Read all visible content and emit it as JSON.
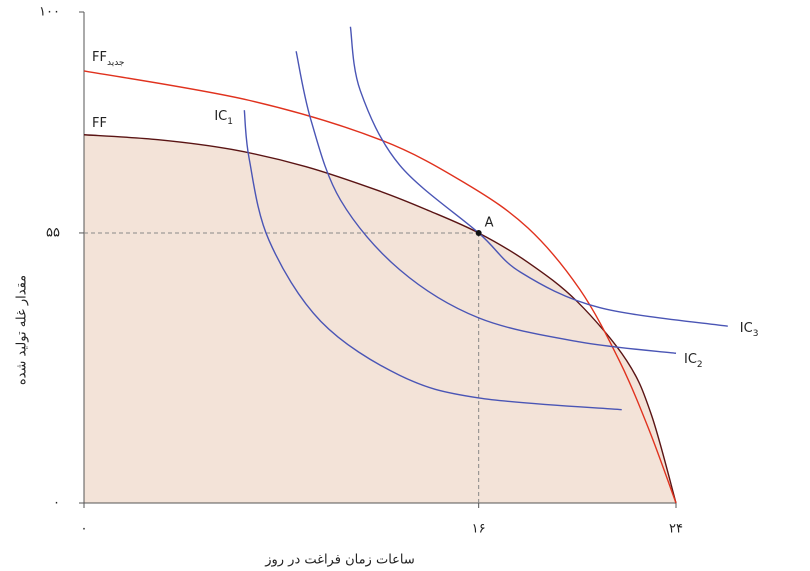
{
  "chart_data": {
    "type": "line",
    "x_label": "ساعات زمان فراغت در روز",
    "y_label": "مقدار غله تولید شده",
    "xlim": [
      0,
      24
    ],
    "ylim": [
      0,
      100
    ],
    "xticks": [
      {
        "value": 0,
        "label": "۰"
      },
      {
        "value": 16,
        "label": "۱۶"
      },
      {
        "value": 24,
        "label": "۲۴"
      }
    ],
    "yticks": [
      {
        "value": 0,
        "label": "۰"
      },
      {
        "value": 55,
        "label": "۵۵"
      },
      {
        "value": 100,
        "label": "۱۰۰"
      }
    ],
    "feasible_fill": "#f3e3d8",
    "series": [
      {
        "name": "FF",
        "color": "#5a1414",
        "x": [
          0,
          3,
          6,
          9,
          12,
          14,
          16,
          18,
          20,
          22,
          23,
          24
        ],
        "values": [
          75,
          74,
          72,
          68.5,
          63.5,
          59.5,
          55,
          49,
          41,
          29,
          18,
          0
        ]
      },
      {
        "name": "FF",
        "subscript": "جدید",
        "color": "#e0321e",
        "x": [
          0,
          6.7,
          12,
          15.5,
          18,
          20.1,
          21.7,
          22.9,
          24
        ],
        "values": [
          88,
          82,
          74,
          65,
          56,
          43.5,
          29,
          15,
          0
        ]
      },
      {
        "name": "IC",
        "subscript": "1",
        "color": "#4a55b5",
        "x": [
          6.5,
          6.7,
          7.5,
          9.6,
          12.8,
          16,
          21.8
        ],
        "values": [
          80,
          70,
          53.5,
          37,
          26,
          21.4,
          19
        ]
      },
      {
        "name": "IC",
        "subscript": "2",
        "color": "#4a55b5",
        "x": [
          8.6,
          9.2,
          10.4,
          12.8,
          16,
          20.1,
          24
        ],
        "values": [
          92,
          78,
          61.7,
          47.5,
          37.7,
          32.8,
          30.5
        ]
      },
      {
        "name": "IC",
        "subscript": "3",
        "color": "#4a55b5",
        "x": [
          10.8,
          11.2,
          12.8,
          16,
          17.7,
          20.9,
          26.1
        ],
        "values": [
          97,
          84,
          68.8,
          55,
          47,
          39.8,
          36
        ]
      }
    ],
    "point": {
      "label": "A",
      "x": 16,
      "y": 55
    }
  }
}
